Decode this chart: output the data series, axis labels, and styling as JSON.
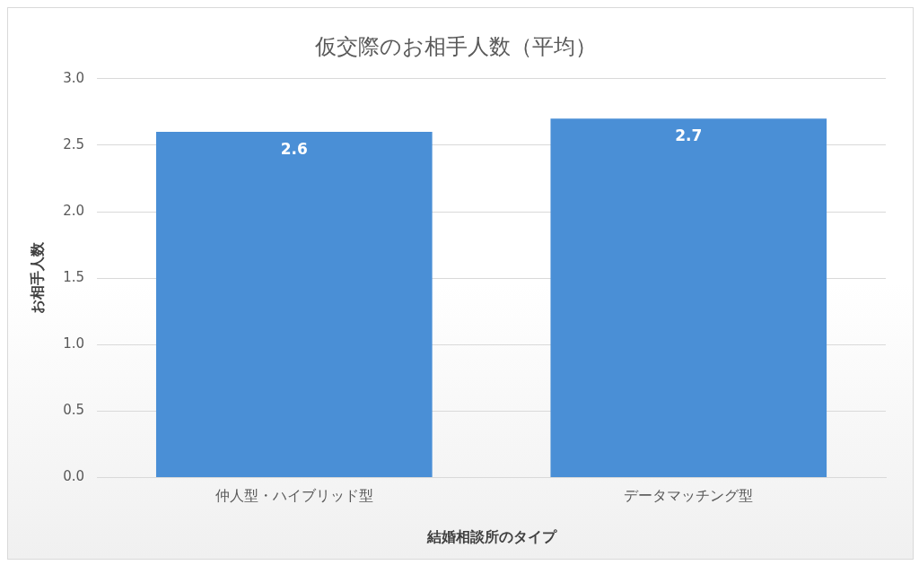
{
  "chart_data": {
    "type": "bar",
    "title": "仮交際のお相手人数（平均）",
    "xlabel": "結婚相談所のタイプ",
    "ylabel": "お相手人数",
    "categories": [
      "仲人型・ハイブリッド型",
      "データマッチング型"
    ],
    "values": [
      2.6,
      2.7
    ],
    "color": "#4a8fd6",
    "ylim": [
      0,
      3
    ],
    "yticks": [
      {
        "value": 0,
        "label": "0.0"
      },
      {
        "value": 0.5,
        "label": "0.5"
      },
      {
        "value": 1,
        "label": "1.0"
      },
      {
        "value": 1.5,
        "label": "1.5"
      },
      {
        "value": 2,
        "label": "2.0"
      },
      {
        "value": 2.5,
        "label": "2.5"
      },
      {
        "value": 3,
        "label": "3.0"
      }
    ],
    "grid": "y",
    "legend": false,
    "data_labels": true
  }
}
